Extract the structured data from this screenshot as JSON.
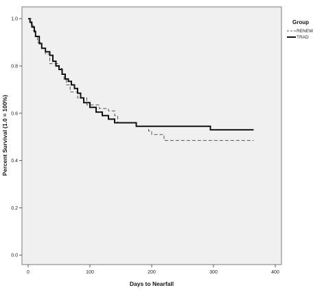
{
  "chart_data": {
    "type": "line",
    "step": true,
    "title": "",
    "xlabel": "Days to Nearfall",
    "ylabel": "Percent Survival (1.0 = 100%)",
    "xlim": [
      -10,
      410
    ],
    "ylim": [
      -0.04,
      1.05
    ],
    "x_ticks": [
      0,
      100,
      200,
      300,
      400
    ],
    "y_ticks": [
      0.0,
      0.2,
      0.4,
      0.6,
      0.8,
      1.0
    ],
    "x_tick_labels": [
      "0",
      "100",
      "200",
      "300",
      "400"
    ],
    "y_tick_labels": [
      "0.0",
      "0.2",
      "0.4",
      "0.6",
      "0.8",
      "1.0"
    ],
    "grid": false,
    "plot_background": "#f0f0f0",
    "legend": {
      "title": "Group",
      "position": "top-right"
    },
    "series": [
      {
        "name": "RENEW",
        "color": "#555555",
        "line_style": "dashed",
        "line_width": 1,
        "x": [
          0,
          5,
          8,
          12,
          15,
          22,
          28,
          35,
          50,
          55,
          58,
          62,
          68,
          80,
          95,
          115,
          120,
          130,
          140,
          145,
          175,
          195,
          200,
          220,
          365
        ],
        "y": [
          1.0,
          0.975,
          0.95,
          0.925,
          0.9,
          0.875,
          0.85,
          0.81,
          0.79,
          0.765,
          0.74,
          0.72,
          0.69,
          0.665,
          0.635,
          0.62,
          0.62,
          0.61,
          0.59,
          0.56,
          0.545,
          0.525,
          0.51,
          0.485,
          0.485
        ]
      },
      {
        "name": "TRAD",
        "color": "#111111",
        "line_style": "solid",
        "line_width": 2,
        "x": [
          0,
          3,
          6,
          10,
          12,
          18,
          22,
          28,
          35,
          40,
          45,
          50,
          55,
          60,
          65,
          70,
          75,
          80,
          85,
          90,
          100,
          110,
          120,
          130,
          140,
          150,
          165,
          175,
          295,
          365
        ],
        "y": [
          1.0,
          0.985,
          0.965,
          0.945,
          0.925,
          0.895,
          0.875,
          0.86,
          0.845,
          0.82,
          0.8,
          0.785,
          0.765,
          0.745,
          0.735,
          0.72,
          0.705,
          0.685,
          0.665,
          0.645,
          0.625,
          0.605,
          0.59,
          0.575,
          0.56,
          0.56,
          0.56,
          0.545,
          0.53,
          0.53
        ]
      }
    ]
  }
}
